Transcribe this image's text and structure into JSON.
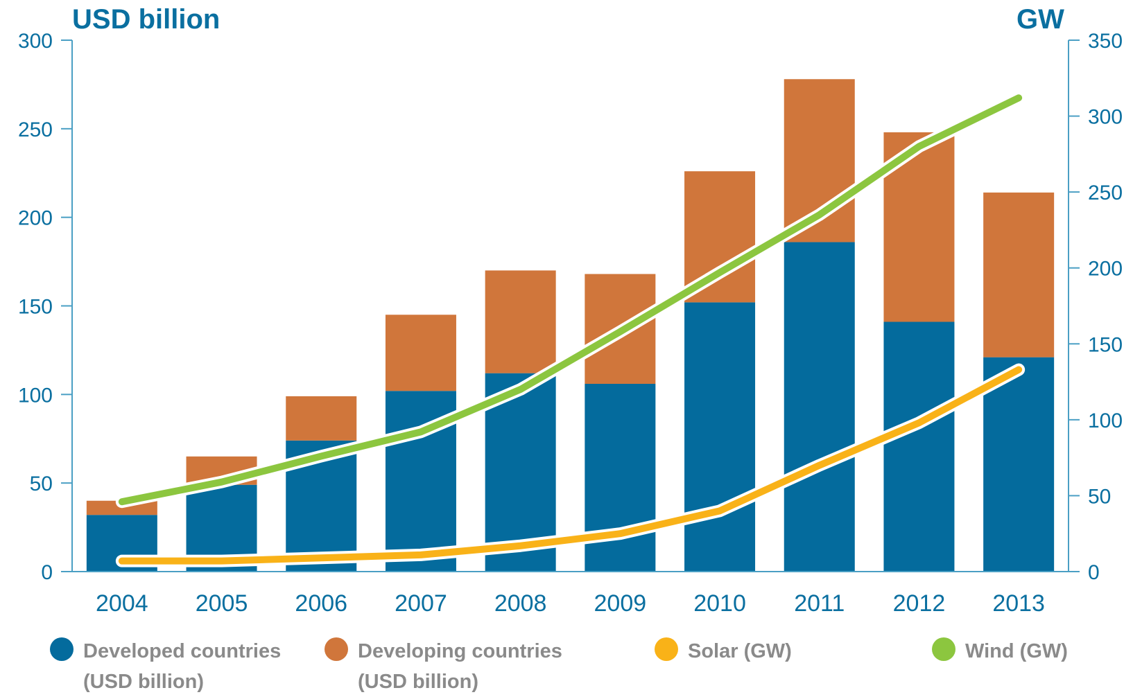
{
  "colors": {
    "axis": "#4a9fc4",
    "tick_text": "#0a6fa0",
    "developed": "#046b9d",
    "developing": "#d0763b",
    "solar": "#f9b218",
    "wind": "#8cc63f"
  },
  "chart_data": {
    "type": "bar",
    "stacked": true,
    "categories": [
      "2004",
      "2005",
      "2006",
      "2007",
      "2008",
      "2009",
      "2010",
      "2011",
      "2012",
      "2013"
    ],
    "y_left": {
      "label": "USD billion",
      "lim": [
        0,
        300
      ],
      "ticks": [
        "0",
        "50",
        "100",
        "150",
        "200",
        "250",
        "300"
      ]
    },
    "y_right": {
      "label": "GW",
      "lim": [
        0,
        350
      ],
      "ticks": [
        "0",
        "50",
        "100",
        "150",
        "200",
        "250",
        "300",
        "350"
      ]
    },
    "series": [
      {
        "name": "Developed countries (USD billion)",
        "type": "bar",
        "axis": "left",
        "values": [
          32,
          49,
          74,
          102,
          112,
          106,
          152,
          186,
          141,
          121
        ]
      },
      {
        "name": "Developing countries (USD billion)",
        "type": "bar",
        "axis": "left",
        "values": [
          8,
          16,
          25,
          43,
          58,
          62,
          74,
          92,
          107,
          93
        ]
      },
      {
        "name": "Solar (GW)",
        "type": "line",
        "axis": "right",
        "values": [
          7,
          7,
          9,
          11,
          17,
          25,
          40,
          70,
          98,
          133
        ]
      },
      {
        "name": "Wind (GW)",
        "type": "line",
        "axis": "right",
        "values": [
          46,
          59,
          76,
          92,
          120,
          158,
          197,
          235,
          280,
          312
        ]
      }
    ],
    "grid": false,
    "legend_position": "bottom"
  },
  "legend": [
    {
      "line1": "Developed countries",
      "line2": "(USD billion)"
    },
    {
      "line1": "Developing countries",
      "line2": "(USD billion)"
    },
    {
      "line1": "Solar (GW)",
      "line2": ""
    },
    {
      "line1": "Wind (GW)",
      "line2": ""
    }
  ]
}
